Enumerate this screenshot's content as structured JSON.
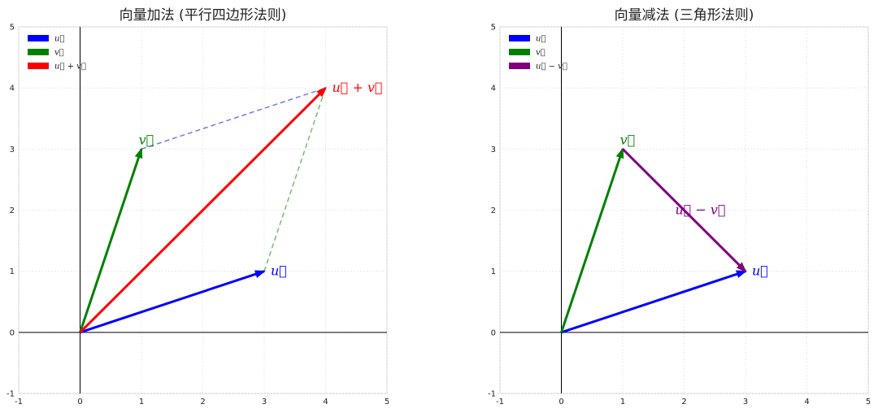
{
  "colors": {
    "u": "#0000ff",
    "v": "#008000",
    "sum": "#ff0000",
    "diff": "#800080",
    "dash_u_side": "#7777ee",
    "dash_v_side": "#77bb77",
    "axis": "#000000",
    "grid": "#e6e6e6",
    "frame": "#cccccc"
  },
  "chart_data": [
    {
      "type": "line",
      "title": "向量加法 (平行四边形法则)",
      "xlim": [
        -1,
        5
      ],
      "ylim": [
        -1,
        5
      ],
      "xticks": [
        "-1",
        "0",
        "1",
        "2",
        "3",
        "4",
        "5"
      ],
      "yticks": [
        "-1",
        "0",
        "1",
        "2",
        "3",
        "4",
        "5"
      ],
      "grid": true,
      "legend_position": "top-left",
      "legend": [
        "u⃗",
        "v⃗",
        "u⃗ + v⃗"
      ],
      "vectors": [
        {
          "name": "u",
          "from": [
            0,
            0
          ],
          "to": [
            3,
            1
          ],
          "color_key": "u",
          "label": "u⃗"
        },
        {
          "name": "v",
          "from": [
            0,
            0
          ],
          "to": [
            1,
            3
          ],
          "color_key": "v",
          "label": "v⃗"
        },
        {
          "name": "u+v",
          "from": [
            0,
            0
          ],
          "to": [
            4,
            4
          ],
          "color_key": "sum",
          "label": "u⃗ + v⃗"
        }
      ],
      "dashed": [
        {
          "from": [
            1,
            3
          ],
          "to": [
            4,
            4
          ],
          "color_key": "dash_u_side"
        },
        {
          "from": [
            3,
            1
          ],
          "to": [
            4,
            4
          ],
          "color_key": "dash_v_side"
        }
      ]
    },
    {
      "type": "line",
      "title": "向量减法 (三角形法则)",
      "xlim": [
        -1,
        5
      ],
      "ylim": [
        -1,
        5
      ],
      "xticks": [
        "-1",
        "0",
        "1",
        "2",
        "3",
        "4",
        "5"
      ],
      "yticks": [
        "-1",
        "0",
        "1",
        "2",
        "3",
        "4",
        "5"
      ],
      "grid": true,
      "legend_position": "top-left",
      "legend": [
        "u⃗",
        "v⃗",
        "u⃗ − v⃗"
      ],
      "vectors": [
        {
          "name": "u",
          "from": [
            0,
            0
          ],
          "to": [
            3,
            1
          ],
          "color_key": "u",
          "label": "u⃗"
        },
        {
          "name": "v",
          "from": [
            0,
            0
          ],
          "to": [
            1,
            3
          ],
          "color_key": "v",
          "label": "v⃗"
        },
        {
          "name": "u-v",
          "from": [
            1,
            3
          ],
          "to": [
            3,
            1
          ],
          "color_key": "diff",
          "label": "u⃗ − v⃗"
        }
      ],
      "dashed": []
    }
  ]
}
